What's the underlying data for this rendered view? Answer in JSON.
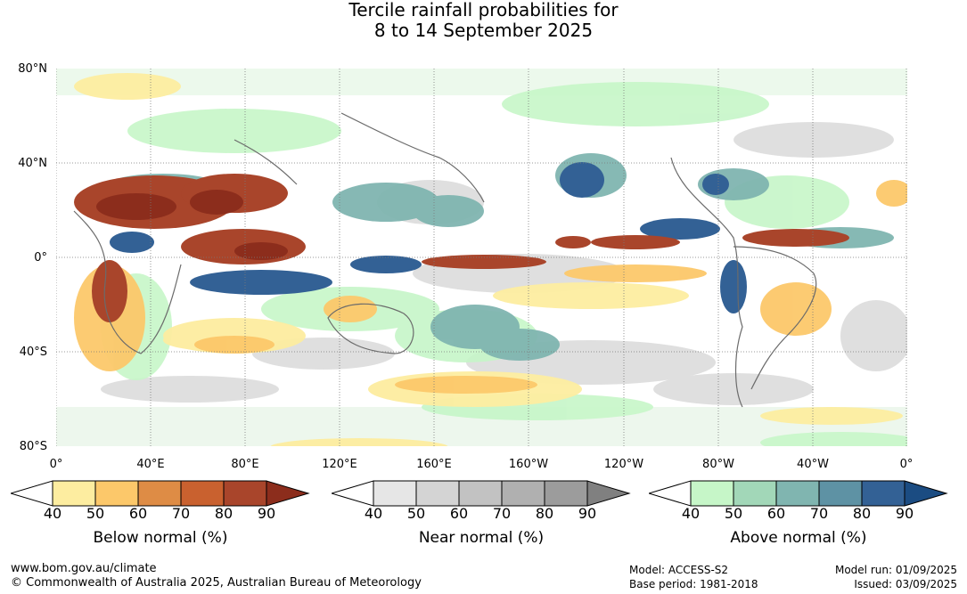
{
  "title": {
    "line1": "Tercile rainfall probabilities for",
    "line2": "8 to 14 September 2025"
  },
  "axes": {
    "latitude_labels": [
      "80°N",
      "40°N",
      "0°",
      "40°S",
      "80°S"
    ],
    "longitude_labels": [
      "0°",
      "40°E",
      "80°E",
      "120°E",
      "160°E",
      "160°W",
      "120°W",
      "80°W",
      "40°W",
      "0°"
    ]
  },
  "legends": [
    {
      "title": "Below normal (%)",
      "ticks": [
        "40",
        "50",
        "60",
        "70",
        "80",
        "90"
      ],
      "colors": [
        "#ffffff",
        "#fdeda0",
        "#fcc86a",
        "#de8c45",
        "#c9612f",
        "#a9452b",
        "#8c2d1c"
      ]
    },
    {
      "title": "Near normal (%)",
      "ticks": [
        "40",
        "50",
        "60",
        "70",
        "80",
        "90"
      ],
      "colors": [
        "#ffffff",
        "#e6e6e6",
        "#d4d4d4",
        "#c2c2c2",
        "#b0b0b0",
        "#9c9c9c",
        "#808080"
      ]
    },
    {
      "title": "Above normal (%)",
      "ticks": [
        "40",
        "50",
        "60",
        "70",
        "80",
        "90"
      ],
      "colors": [
        "#ffffff",
        "#c6f6c8",
        "#a2d7b8",
        "#80b5b0",
        "#5e92a4",
        "#336195",
        "#1b4c82"
      ]
    }
  ],
  "footer": {
    "website": "www.bom.gov.au/climate",
    "copyright": "© Commonwealth of Australia 2025, Australian Bureau of Meteorology",
    "model": "Model: ACCESS-S2",
    "base_period": "Base period: 1981-2018",
    "model_run": "Model run: 01/09/2025",
    "issued": "Issued: 03/09/2025"
  }
}
